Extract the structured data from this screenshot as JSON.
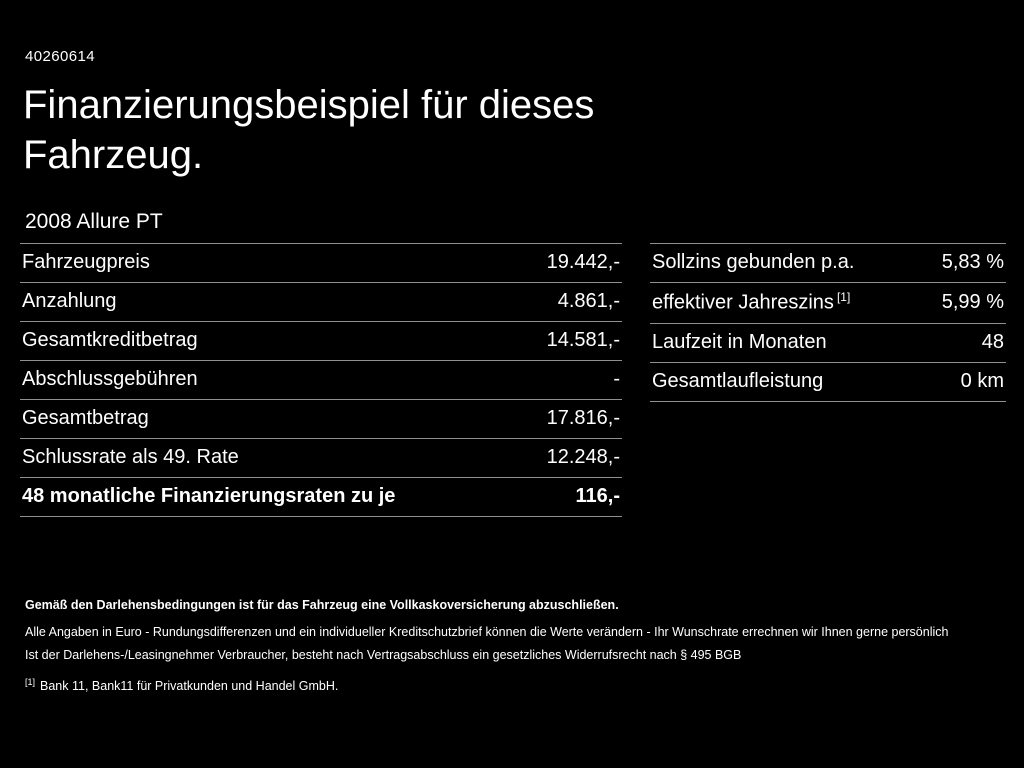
{
  "page": {
    "id_number": "40260614",
    "title": "Finanzierungsbeispiel für dieses Fahrzeug.",
    "subtitle": "2008 Allure PT"
  },
  "colors": {
    "background": "#000000",
    "text": "#ffffff",
    "divider": "#909090"
  },
  "left_table": {
    "rows": [
      {
        "label": "Fahrzeugpreis",
        "value": "19.442,-"
      },
      {
        "label": "Anzahlung",
        "value": "4.861,-"
      },
      {
        "label": "Gesamtkreditbetrag",
        "value": "14.581,-"
      },
      {
        "label": "Abschlussgebühren",
        "value": "-"
      },
      {
        "label": "Gesamtbetrag",
        "value": "17.816,-"
      },
      {
        "label": "Schlussrate als 49. Rate",
        "value": "12.248,-"
      },
      {
        "label": "48 monatliche Finanzierungsraten zu je",
        "value": "116,-"
      }
    ]
  },
  "right_table": {
    "rows": [
      {
        "label": "Sollzins gebunden p.a.",
        "value": "5,83 %"
      },
      {
        "label": "effektiver Jahreszins",
        "sup": "[1]",
        "value": "5,99 %"
      },
      {
        "label": "Laufzeit in Monaten",
        "value": "48"
      },
      {
        "label": "Gesamtlaufleistung",
        "value": "0 km"
      }
    ]
  },
  "footer": {
    "line_bold": "Gemäß den Darlehensbedingungen ist für das Fahrzeug eine Vollkaskoversicherung abzuschließen.",
    "line2": "Alle Angaben in Euro - Rundungsdifferenzen und ein individueller Kreditschutzbrief können die Werte verändern - Ihr Wunschrate errechnen wir Ihnen gerne persönlich",
    "line3": "Ist der Darlehens-/Leasingnehmer Verbraucher, besteht nach Vertragsabschluss ein gesetzliches Widerrufsrecht nach § 495 BGB",
    "footnote_marker": "[1]",
    "footnote_text": "Bank 11, Bank11 für Privatkunden und Handel GmbH."
  }
}
